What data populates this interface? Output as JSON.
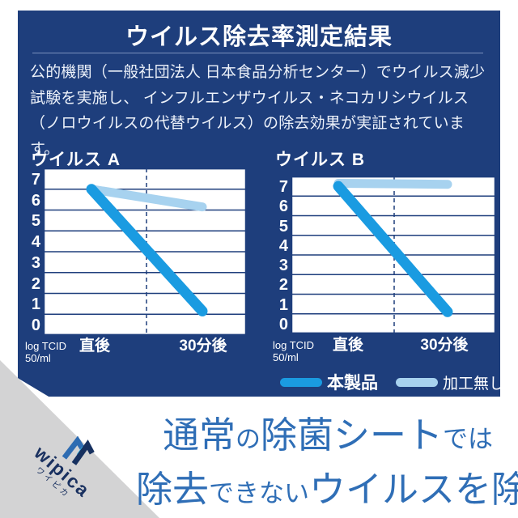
{
  "header": {
    "title": "ウイルス除去率測定結果"
  },
  "description": {
    "line1": "公的機関（一般社団法人 日本食品分析センター）でウイルス減少",
    "line2": "試験を実施し、 インフルエンザウイルス・ネコカリシウイルス",
    "line3": "（ノロウイルスの代替ウイルス）の除去効果が実証されています。"
  },
  "charts": [
    {
      "title": "ウイルス A",
      "y_labels": [
        "7",
        "6",
        "5",
        "4",
        "3",
        "2",
        "1",
        "0"
      ],
      "x_label_left": "直後",
      "x_label_right": "30分後",
      "unit_line1": "log TCID",
      "unit_line2": "50/ml"
    },
    {
      "title": "ウイルス B",
      "y_labels": [
        "7",
        "6",
        "5",
        "4",
        "3",
        "2",
        "1",
        "0"
      ],
      "x_label_left": "直後",
      "x_label_right": "30分後",
      "unit_line1": "log TCID",
      "unit_line2": "50/ml"
    }
  ],
  "legend": {
    "product_label": "本製品",
    "untreated_label": "加工無し"
  },
  "chart_data": [
    {
      "type": "line",
      "title": "ウイルス A",
      "x": [
        "直後",
        "30分後"
      ],
      "ylabel": "log TCID50/ml",
      "ylim": [
        0,
        7.5
      ],
      "y_ticks": [
        7,
        6,
        5,
        4,
        3,
        2,
        1,
        0
      ],
      "grid": true,
      "legend_position": "bottom",
      "series": [
        {
          "name": "本製品",
          "color": "#1a9be1",
          "values": [
            6.5,
            0.65
          ]
        },
        {
          "name": "加工無し",
          "color": "#a7d2ef",
          "values": [
            6.5,
            5.65
          ]
        }
      ]
    },
    {
      "type": "line",
      "title": "ウイルス B",
      "x": [
        "直後",
        "30分後"
      ],
      "ylabel": "log TCID50/ml",
      "ylim": [
        0,
        7.5
      ],
      "y_ticks": [
        7,
        6,
        5,
        4,
        3,
        2,
        1,
        0
      ],
      "grid": true,
      "legend_position": "bottom",
      "series": [
        {
          "name": "本製品",
          "color": "#1a9be1",
          "values": [
            7.0,
            0.6
          ]
        },
        {
          "name": "加工無し",
          "color": "#a7d2ef",
          "values": [
            7.15,
            7.1
          ]
        }
      ]
    }
  ],
  "footer": {
    "brand": "wipica",
    "brand_kana": "ワイピカ",
    "tagline": {
      "l1s1": "通常",
      "l1s2": "の",
      "l1s3": "除菌シート",
      "l1s4": "では",
      "l2s1": "除去",
      "l2s2": "できない",
      "l2s3": "ウイルス",
      "l2s4": "を除去"
    }
  },
  "colors": {
    "panel_navy": "#1e3e7c",
    "product_blue": "#1a9be1",
    "untreated_blue": "#a7d2ef",
    "tagline_blue": "#2f6eb6",
    "footer_gray": "#d3d3d4",
    "logo_left_blue": "#2e6cb2",
    "logo_right_navy": "#16305f",
    "logo_accent_cyan": "#35b5e5"
  }
}
